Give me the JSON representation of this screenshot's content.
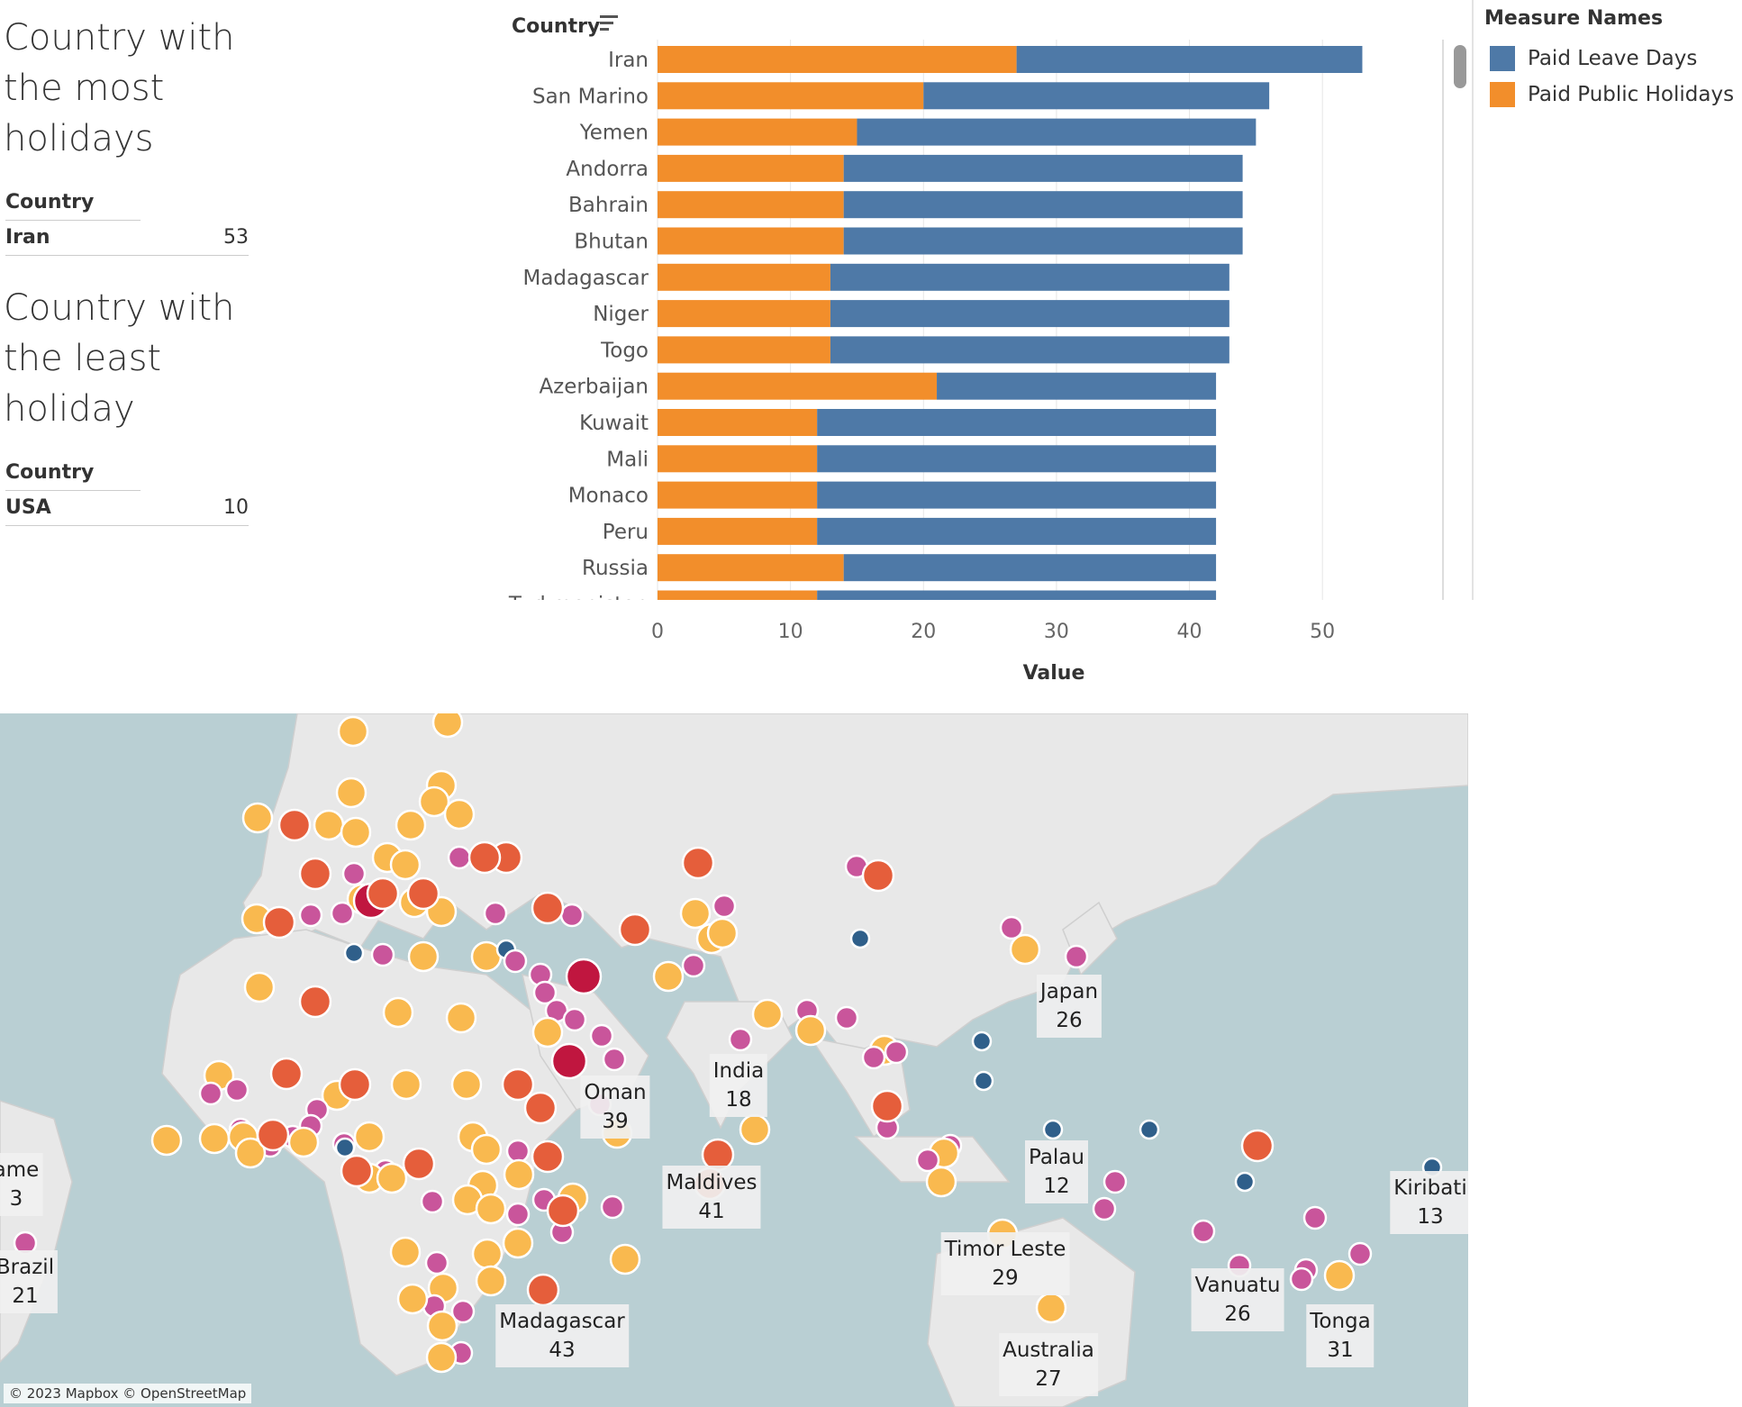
{
  "most": {
    "title_lines": [
      "Country with",
      "the most",
      "holidays"
    ],
    "header": "Country",
    "country": "Iran",
    "value": "53"
  },
  "least": {
    "title_lines": [
      "Country with",
      "the least",
      "holiday"
    ],
    "header": "Country",
    "country": "USA",
    "value": "10"
  },
  "legend": {
    "title": "Measure Names",
    "items": [
      {
        "label": "Paid Leave Days",
        "color": "#4e79a7"
      },
      {
        "label": "Paid Public Holidays",
        "color": "#f28e2b"
      }
    ]
  },
  "chart_data": {
    "type": "bar",
    "orientation": "horizontal",
    "stacked": true,
    "ylabel": "Country",
    "xlabel": "Value",
    "xlim": [
      0,
      55
    ],
    "xticks": [
      0,
      10,
      20,
      30,
      40,
      50
    ],
    "categories": [
      "Iran",
      "San Marino",
      "Yemen",
      "Andorra",
      "Bahrain",
      "Bhutan",
      "Madagascar",
      "Niger",
      "Togo",
      "Azerbaijan",
      "Kuwait",
      "Mali",
      "Monaco",
      "Peru",
      "Russia",
      "Turkmenistan"
    ],
    "series": [
      {
        "name": "Paid Public Holidays",
        "color": "#f28e2b",
        "values": [
          27,
          20,
          15,
          14,
          14,
          14,
          13,
          13,
          13,
          21,
          12,
          12,
          12,
          12,
          14,
          12
        ]
      },
      {
        "name": "Paid Leave Days",
        "color": "#4e79a7",
        "values": [
          26,
          26,
          30,
          30,
          30,
          30,
          30,
          30,
          30,
          21,
          30,
          30,
          30,
          30,
          28,
          30
        ]
      }
    ],
    "grid": true
  },
  "map": {
    "attribution": "© 2023 Mapbox © OpenStreetMap",
    "labels": [
      {
        "name": "Japan",
        "value": "26"
      },
      {
        "name": "India",
        "value": "18"
      },
      {
        "name": "Oman",
        "value": "39"
      },
      {
        "name": "Palau",
        "value": "12"
      },
      {
        "name": "Kiribati",
        "value": "13"
      },
      {
        "name": "Maldives",
        "value": "41"
      },
      {
        "name": "Timor Leste",
        "value": "29"
      },
      {
        "name": "Vanuatu",
        "value": "26"
      },
      {
        "name": "Brazil",
        "value": "21"
      },
      {
        "name": "Tonga",
        "value": "31"
      },
      {
        "name": "Madagascar",
        "value": "43"
      },
      {
        "name": "Australia",
        "value": "27"
      },
      {
        "name": "ame",
        "value": "3"
      }
    ]
  }
}
